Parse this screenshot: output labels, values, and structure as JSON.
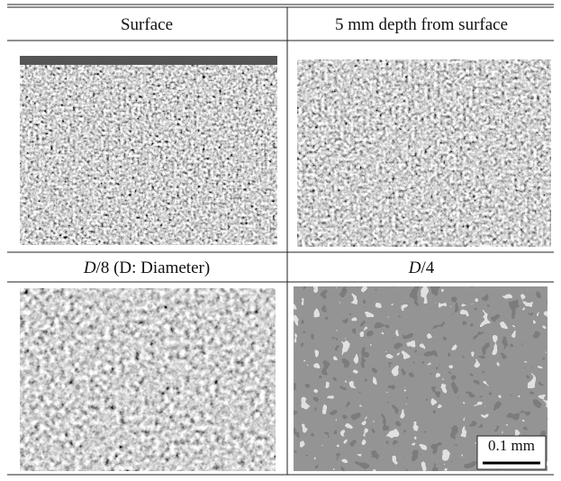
{
  "table": {
    "cells": [
      {
        "label": "Surface"
      },
      {
        "label": "5 mm depth from surface"
      },
      {
        "label": [
          "D",
          "/8 (D: Diameter)"
        ]
      },
      {
        "label": [
          "D",
          "/4"
        ]
      }
    ],
    "scale_bar": "0.1 mm"
  }
}
